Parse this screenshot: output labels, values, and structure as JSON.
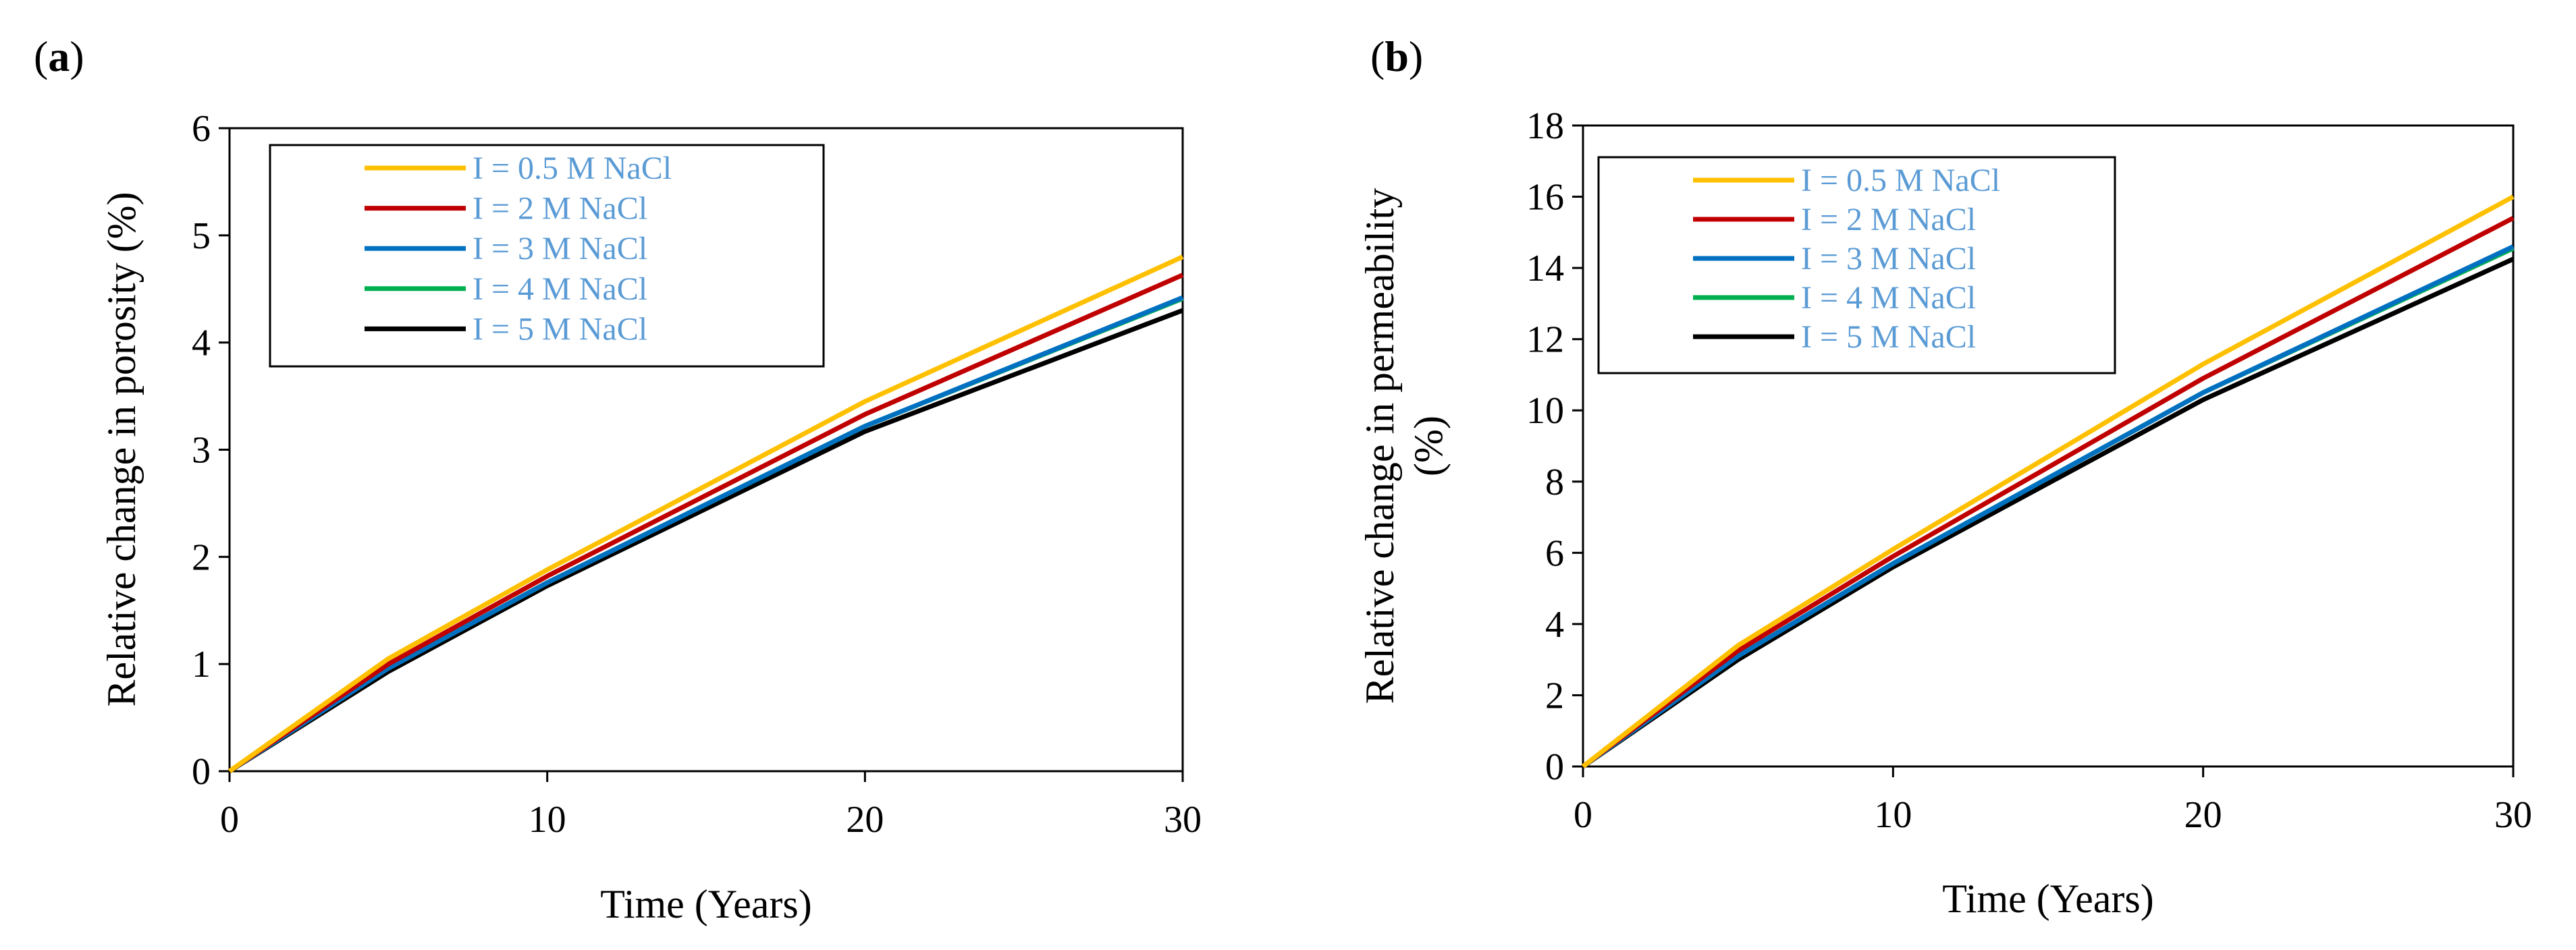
{
  "colors": {
    "series": [
      "#FFC000",
      "#C00000",
      "#0070C0",
      "#00B050",
      "#000000"
    ],
    "legend_text": "#5B9BD5"
  },
  "chart_data": [
    {
      "type": "line",
      "panel_label_open": "(",
      "panel_label_letter": "a",
      "panel_label_close": ")",
      "xlabel": "Time (Years)",
      "ylabel_lines": [
        "Relative change in porosity (%)"
      ],
      "xlim": [
        0,
        30
      ],
      "ylim": [
        0,
        6
      ],
      "xticks": [
        0,
        10,
        20,
        30
      ],
      "yticks": [
        0,
        1,
        2,
        3,
        4,
        5,
        6
      ],
      "grid": false,
      "legend_position": "top-left",
      "x": [
        0,
        5,
        10,
        20,
        30
      ],
      "series": [
        {
          "name": "I = 0.5 M NaCl",
          "values": [
            0,
            1.05,
            1.88,
            3.45,
            4.8
          ]
        },
        {
          "name": "I = 2 M NaCl",
          "values": [
            0,
            1.0,
            1.82,
            3.33,
            4.63
          ]
        },
        {
          "name": "I = 3 M NaCl",
          "values": [
            0,
            0.96,
            1.76,
            3.22,
            4.42
          ]
        },
        {
          "name": "I = 4 M NaCl",
          "values": [
            0,
            0.96,
            1.76,
            3.22,
            4.41
          ]
        },
        {
          "name": "I = 5 M NaCl",
          "values": [
            0,
            0.93,
            1.73,
            3.17,
            4.3
          ]
        }
      ]
    },
    {
      "type": "line",
      "panel_label_open": "(",
      "panel_label_letter": "b",
      "panel_label_close": ")",
      "xlabel": "Time (Years)",
      "ylabel_lines": [
        "Relative change in permeability",
        "(%)"
      ],
      "xlim": [
        0,
        30
      ],
      "ylim": [
        0,
        18
      ],
      "xticks": [
        0,
        10,
        20,
        30
      ],
      "yticks": [
        0,
        2,
        4,
        6,
        8,
        10,
        12,
        14,
        16,
        18
      ],
      "grid": false,
      "legend_position": "top-left",
      "x": [
        0,
        5,
        10,
        20,
        30
      ],
      "series": [
        {
          "name": "I = 0.5 M NaCl",
          "values": [
            0,
            3.4,
            6.1,
            11.3,
            16.0
          ]
        },
        {
          "name": "I = 2 M NaCl",
          "values": [
            0,
            3.25,
            5.9,
            10.9,
            15.4
          ]
        },
        {
          "name": "I = 3 M NaCl",
          "values": [
            0,
            3.1,
            5.7,
            10.5,
            14.6
          ]
        },
        {
          "name": "I = 4 M NaCl",
          "values": [
            0,
            3.1,
            5.7,
            10.5,
            14.55
          ]
        },
        {
          "name": "I = 5 M NaCl",
          "values": [
            0,
            3.0,
            5.6,
            10.3,
            14.25
          ]
        }
      ]
    }
  ]
}
